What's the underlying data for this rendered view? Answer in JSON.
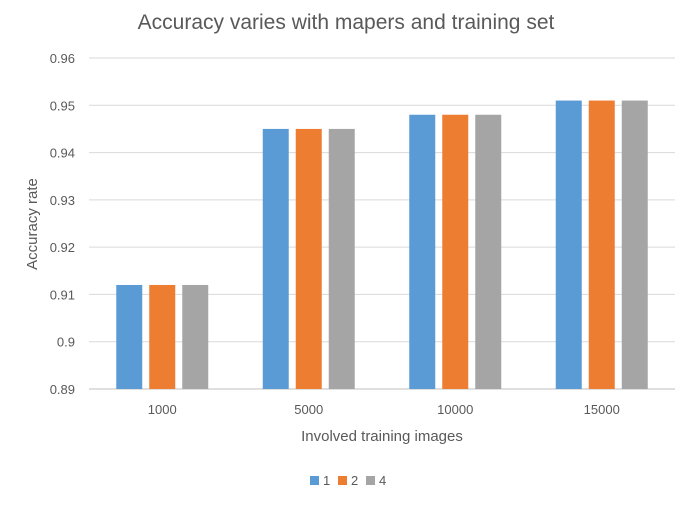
{
  "chart_data": {
    "type": "bar",
    "title": "Accuracy varies with mapers and training set",
    "xlabel": "Involved training images",
    "ylabel": "Accuracy rate",
    "categories": [
      "1000",
      "5000",
      "10000",
      "15000"
    ],
    "series": [
      {
        "name": "1",
        "color": "#5B9BD5",
        "values": [
          0.912,
          0.945,
          0.948,
          0.951
        ]
      },
      {
        "name": "2",
        "color": "#ED7D31",
        "values": [
          0.912,
          0.945,
          0.948,
          0.951
        ]
      },
      {
        "name": "4",
        "color": "#A5A5A5",
        "values": [
          0.912,
          0.945,
          0.948,
          0.951
        ]
      }
    ],
    "ylim": [
      0.89,
      0.96
    ],
    "yticks": [
      "0.89",
      "0.9",
      "0.91",
      "0.92",
      "0.93",
      "0.94",
      "0.95",
      "0.96"
    ],
    "grid": true,
    "legend_position": "bottom"
  }
}
